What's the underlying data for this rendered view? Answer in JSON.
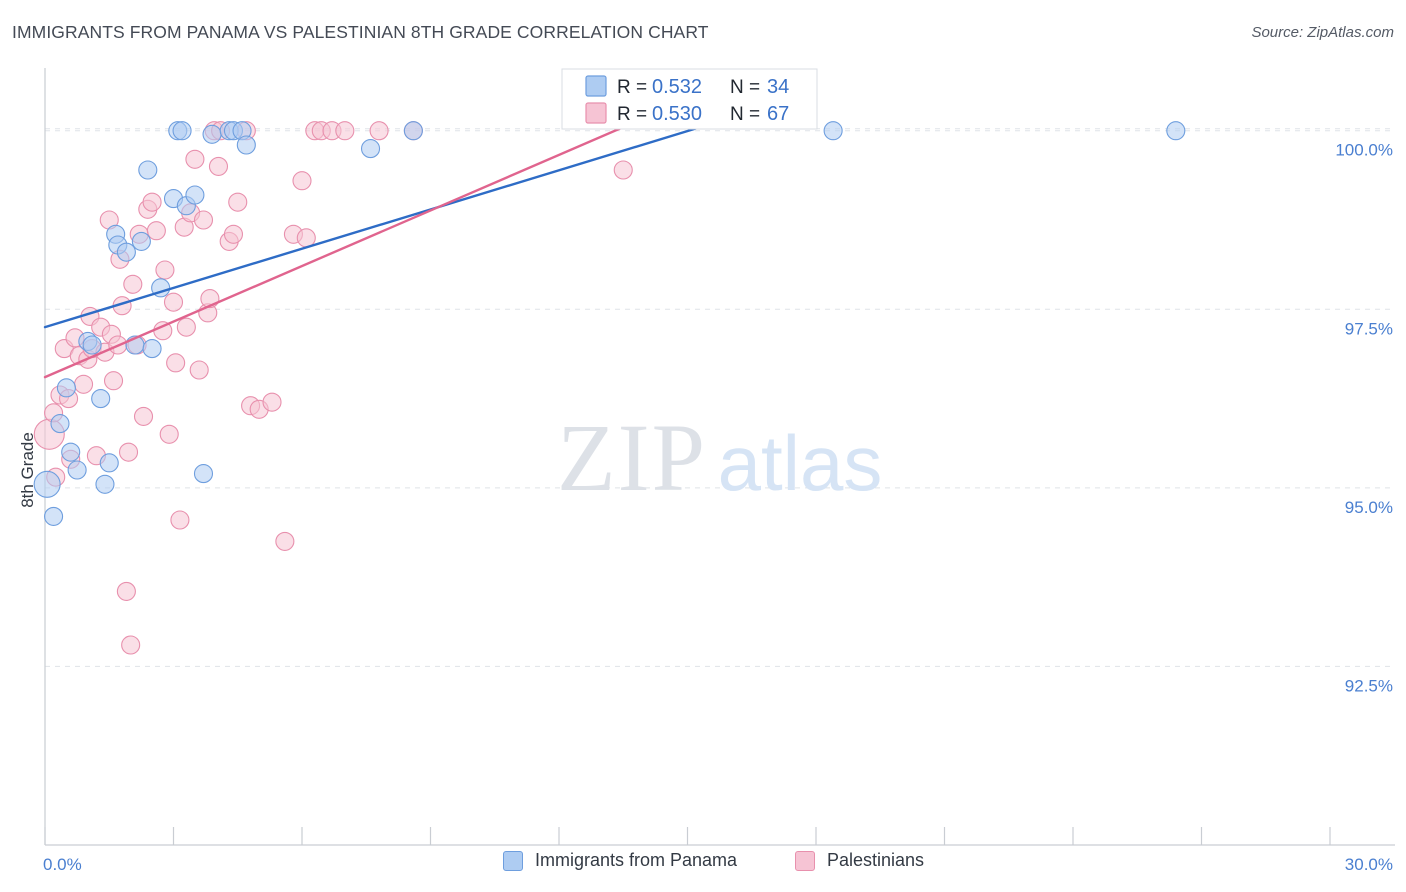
{
  "title": "IMMIGRANTS FROM PANAMA VS PALESTINIAN 8TH GRADE CORRELATION CHART",
  "source": "Source: ZipAtlas.com",
  "watermark": {
    "zip": "ZIP",
    "atlas": "atlas"
  },
  "colors": {
    "panama_fill": "#aeccf2",
    "panama_stroke": "#6e9ede",
    "panama_line": "#2e6cc6",
    "palestinian_fill": "#f6c4d4",
    "palestinian_stroke": "#e890ad",
    "palestinian_line": "#e0648e",
    "tick_label": "#4a7fd0",
    "grid": "#dfe3e8"
  },
  "stats_legend": {
    "r_label": "R =",
    "n_label": "N =",
    "rows": [
      {
        "series": "Immigrants from Panama",
        "r": "0.532",
        "n": "34"
      },
      {
        "series": "Palestinians",
        "r": "0.530",
        "n": "67"
      }
    ]
  },
  "chart_data": {
    "type": "scatter",
    "title": "IMMIGRANTS FROM PANAMA VS PALESTINIAN 8TH GRADE CORRELATION CHART",
    "xlabel": "",
    "ylabel": "8th Grade",
    "xlim": [
      0,
      30
    ],
    "ylim": [
      90.0,
      100.85
    ],
    "x_tick_labels": [
      "0.0%",
      "30.0%"
    ],
    "y_ticks": [
      92.5,
      95.0,
      97.5,
      100.0
    ],
    "y_tick_labels": [
      "92.5%",
      "95.0%",
      "97.5%",
      "100.0%"
    ],
    "grid": true,
    "legend_position": "bottom",
    "series": [
      {
        "name": "Immigrants from Panama",
        "r": 0.532,
        "n": 34,
        "trend": {
          "x": [
            0.0,
            15.3
          ],
          "y": [
            97.25,
            100.05
          ]
        },
        "x": [
          0.05,
          0.2,
          0.35,
          0.5,
          0.6,
          0.75,
          1.0,
          1.1,
          1.3,
          1.4,
          1.5,
          1.65,
          1.7,
          1.9,
          2.1,
          2.25,
          2.4,
          2.5,
          2.7,
          3.0,
          3.1,
          3.2,
          3.3,
          3.5,
          3.7,
          3.9,
          4.3,
          4.4,
          4.6,
          4.7,
          7.6,
          8.6,
          18.4,
          26.4
        ],
        "y": [
          95.05,
          94.6,
          95.9,
          96.4,
          95.5,
          95.25,
          97.05,
          97.0,
          96.25,
          95.05,
          95.35,
          98.55,
          98.4,
          98.3,
          97.0,
          98.45,
          99.45,
          96.95,
          97.8,
          99.05,
          100.0,
          100.0,
          98.95,
          99.1,
          95.2,
          99.95,
          100.0,
          100.0,
          100.0,
          99.8,
          99.75,
          100.0,
          100.0,
          100.0
        ]
      },
      {
        "name": "Palestinians",
        "r": 0.53,
        "n": 67,
        "trend": {
          "x": [
            0.0,
            13.5
          ],
          "y": [
            96.55,
            100.05
          ]
        },
        "x": [
          0.1,
          0.2,
          0.25,
          0.35,
          0.45,
          0.55,
          0.6,
          0.7,
          0.8,
          0.9,
          1.0,
          1.05,
          1.1,
          1.2,
          1.3,
          1.4,
          1.5,
          1.55,
          1.6,
          1.7,
          1.75,
          1.8,
          1.9,
          1.95,
          2.0,
          2.05,
          2.15,
          2.2,
          2.3,
          2.4,
          2.5,
          2.6,
          2.75,
          2.8,
          2.9,
          3.0,
          3.05,
          3.15,
          3.25,
          3.3,
          3.4,
          3.5,
          3.6,
          3.7,
          3.8,
          3.85,
          3.95,
          4.05,
          4.1,
          4.3,
          4.4,
          4.5,
          4.7,
          4.8,
          5.0,
          5.3,
          5.6,
          5.8,
          6.0,
          6.1,
          6.3,
          6.45,
          6.7,
          7.0,
          7.8,
          8.6,
          13.5
        ],
        "y": [
          95.75,
          96.05,
          95.15,
          96.3,
          96.95,
          96.25,
          95.4,
          97.1,
          96.85,
          96.45,
          96.8,
          97.4,
          96.95,
          95.45,
          97.25,
          96.9,
          98.75,
          97.15,
          96.5,
          97.0,
          98.2,
          97.55,
          93.55,
          95.5,
          92.8,
          97.85,
          97.0,
          98.55,
          96.0,
          98.9,
          99.0,
          98.6,
          97.2,
          98.05,
          95.75,
          97.6,
          96.75,
          94.55,
          98.65,
          97.25,
          98.85,
          99.6,
          96.65,
          98.75,
          97.45,
          97.65,
          100.0,
          99.5,
          100.0,
          98.45,
          98.55,
          99.0,
          100.0,
          96.15,
          96.1,
          96.2,
          94.25,
          98.55,
          99.3,
          98.5,
          100.0,
          100.0,
          100.0,
          100.0,
          100.0,
          100.0,
          99.45
        ]
      }
    ]
  }
}
